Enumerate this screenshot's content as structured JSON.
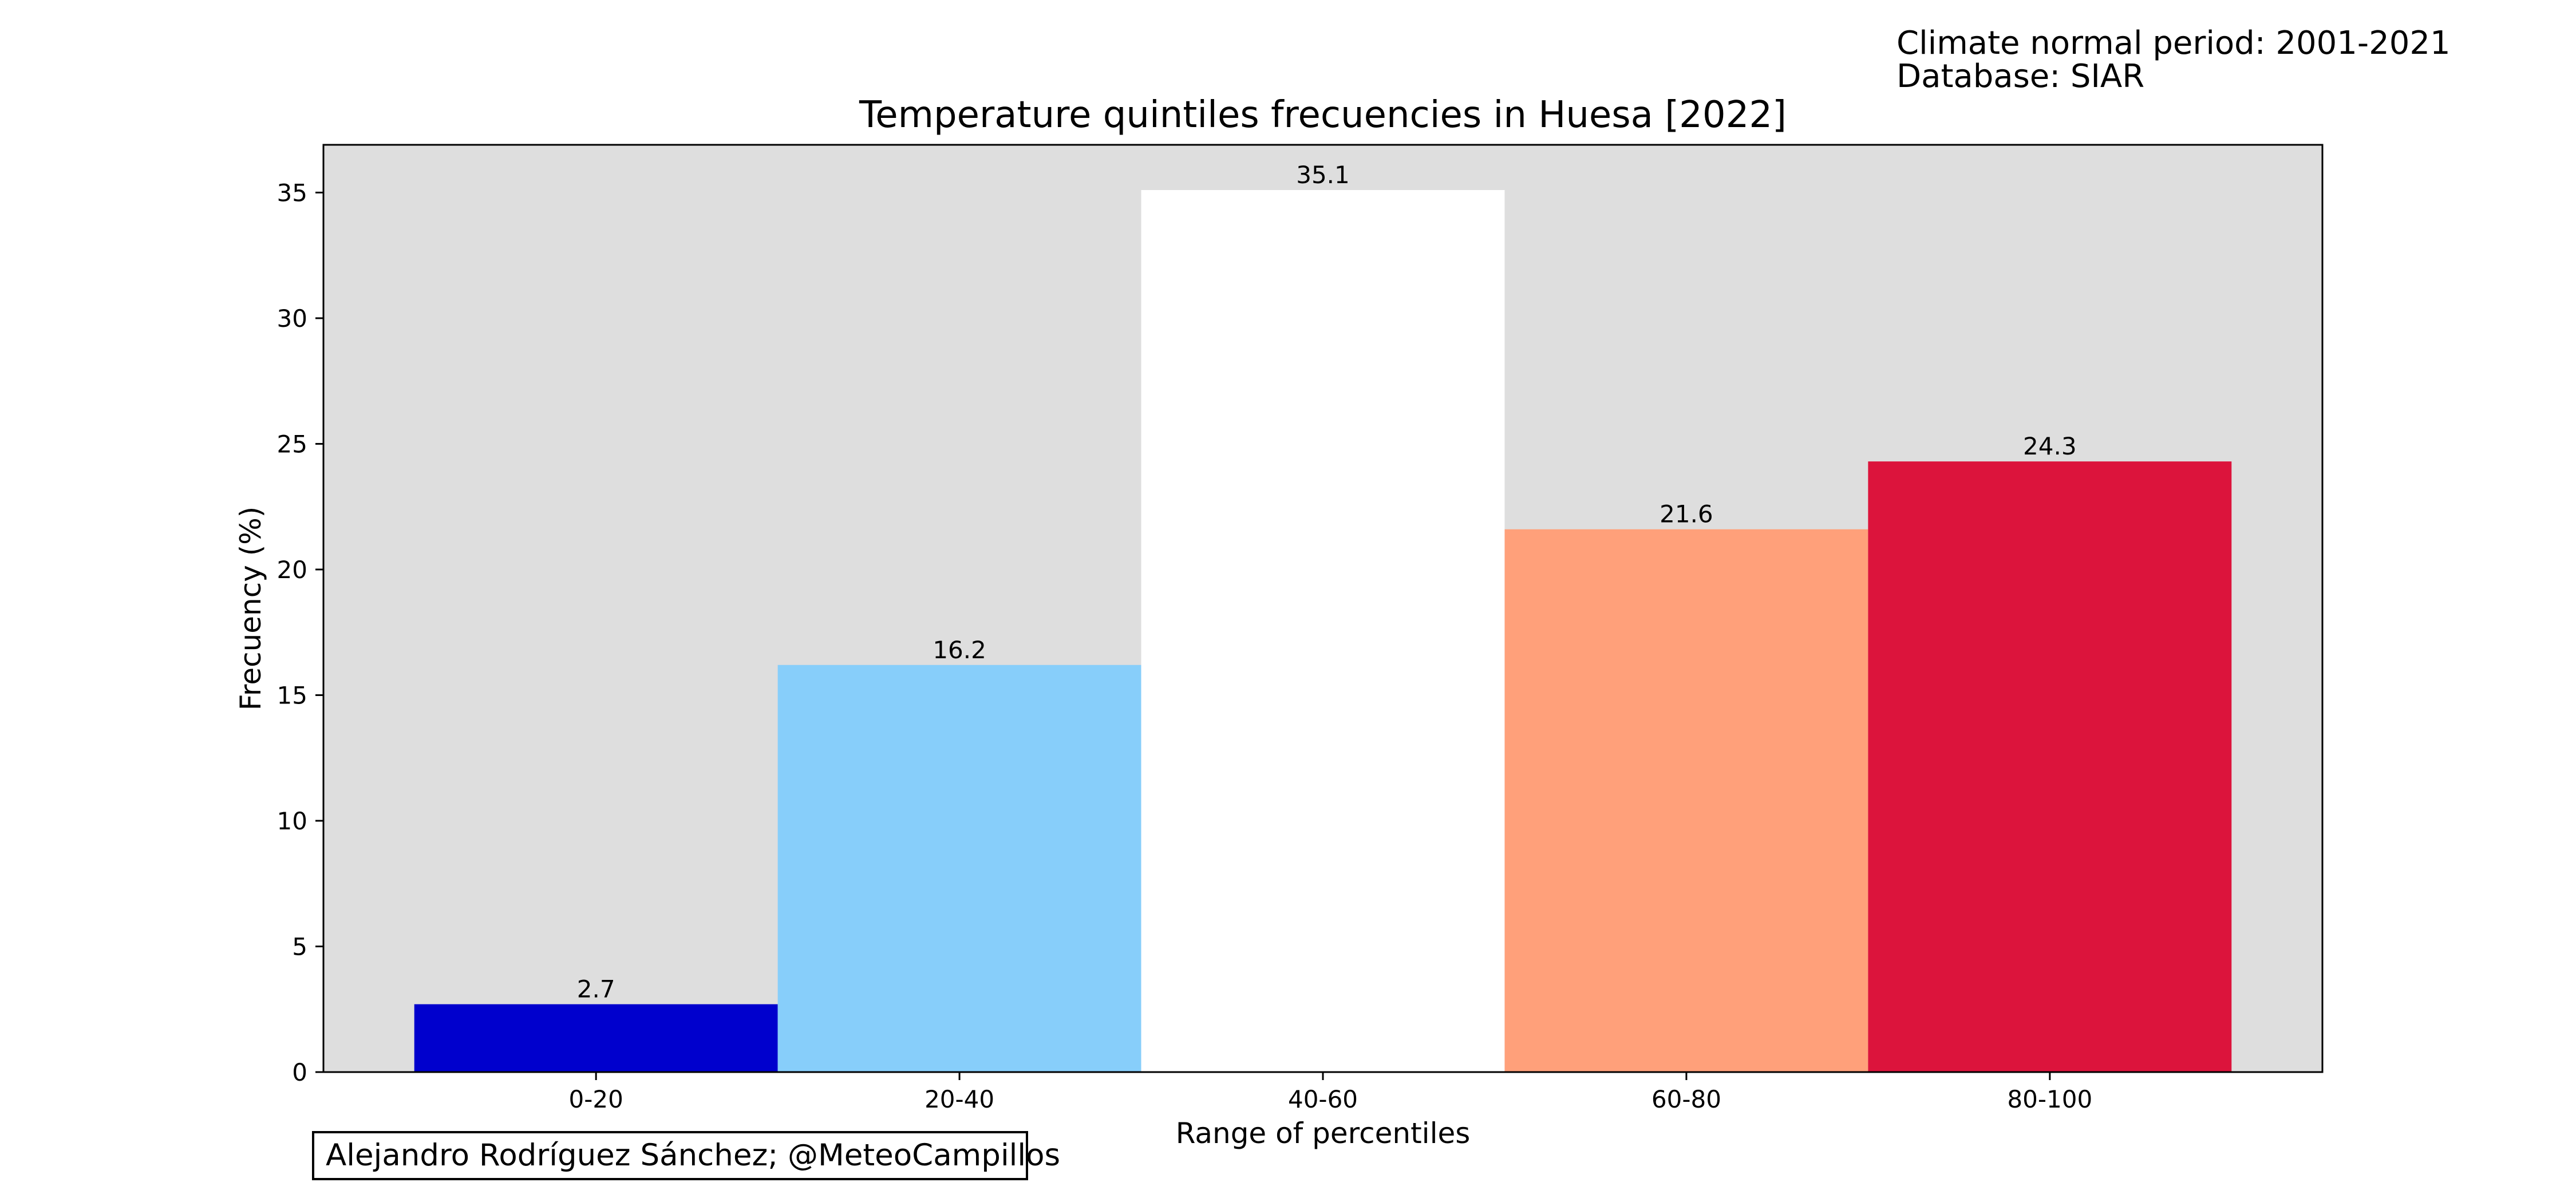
{
  "header": {
    "note_period": "Climate normal period: 2001-2021",
    "note_database": "Database: SIAR"
  },
  "footer": {
    "credit": "Alejandro Rodríguez Sánchez; @MeteoCampillos"
  },
  "chart_data": {
    "type": "bar",
    "title": "Temperature quintiles frecuencies in Huesa [2022]",
    "xlabel": "Range of percentiles",
    "ylabel": "Frecuency (%)",
    "categories": [
      "0-20",
      "20-40",
      "40-60",
      "60-80",
      "80-100"
    ],
    "values": [
      2.7,
      16.2,
      35.1,
      21.6,
      24.3
    ],
    "value_labels": [
      "2.7",
      "16.2",
      "35.1",
      "21.6",
      "24.3"
    ],
    "colors": [
      "#0000cd",
      "#87cefa",
      "#ffffff",
      "#ffa07a",
      "#dc143c"
    ],
    "ylim": [
      0,
      36.9
    ],
    "yticks": [
      0,
      5,
      10,
      15,
      20,
      25,
      30,
      35
    ],
    "grid": false,
    "plot_background": "#dedede"
  }
}
